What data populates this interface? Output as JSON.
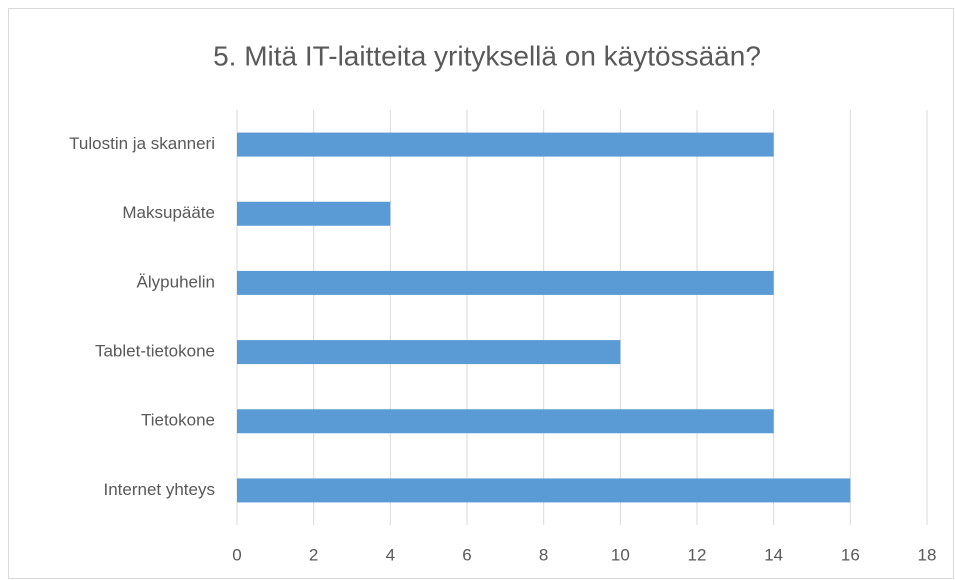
{
  "chart_data": {
    "type": "bar",
    "orientation": "horizontal",
    "title": "5. Mitä IT-laitteita yrityksellä on käytössään?",
    "categories": [
      "Tulostin ja skanneri",
      "Maksupääte",
      "Älypuhelin",
      "Tablet-tietokone",
      "Tietokone",
      "Internet yhteys"
    ],
    "values": [
      14,
      4,
      14,
      10,
      14,
      16
    ],
    "color": "#5b9bd5",
    "xlim": [
      0,
      18
    ],
    "xticks": [
      0,
      2,
      4,
      6,
      8,
      10,
      12,
      14,
      16,
      18
    ],
    "grid": true
  }
}
